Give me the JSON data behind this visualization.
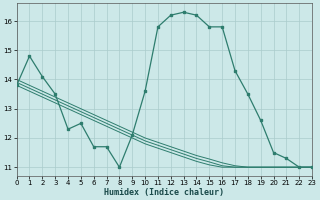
{
  "title": "",
  "xlabel": "Humidex (Indice chaleur)",
  "ylabel": "",
  "background_color": "#cce8e8",
  "line_color": "#2e7d6e",
  "grid_color": "#aacccc",
  "x_data": [
    0,
    1,
    2,
    3,
    4,
    5,
    6,
    7,
    8,
    9,
    10,
    11,
    12,
    13,
    14,
    15,
    16,
    17,
    18,
    19,
    20,
    21,
    22,
    23
  ],
  "y_main": [
    13.8,
    14.8,
    14.1,
    13.5,
    12.3,
    12.5,
    11.7,
    11.7,
    11.0,
    12.1,
    13.6,
    15.8,
    16.2,
    16.3,
    16.2,
    15.8,
    15.8,
    14.3,
    13.5,
    12.6,
    11.5,
    11.3,
    11.0,
    11.0
  ],
  "y_trend1": [
    14.0,
    13.8,
    13.6,
    13.4,
    13.2,
    13.0,
    12.8,
    12.6,
    12.4,
    12.2,
    12.0,
    11.85,
    11.7,
    11.55,
    11.4,
    11.28,
    11.15,
    11.05,
    11.0,
    11.0,
    11.0,
    11.0,
    11.0,
    11.0
  ],
  "y_trend2": [
    13.9,
    13.7,
    13.5,
    13.3,
    13.1,
    12.9,
    12.7,
    12.5,
    12.3,
    12.1,
    11.9,
    11.75,
    11.6,
    11.45,
    11.3,
    11.18,
    11.05,
    11.0,
    11.0,
    11.0,
    11.0,
    11.0,
    11.0,
    11.0
  ],
  "y_trend3": [
    13.8,
    13.6,
    13.4,
    13.2,
    13.0,
    12.8,
    12.6,
    12.4,
    12.2,
    12.0,
    11.8,
    11.65,
    11.5,
    11.35,
    11.2,
    11.08,
    11.0,
    11.0,
    11.0,
    11.0,
    11.0,
    11.0,
    11.0,
    11.0
  ],
  "xlim": [
    0,
    23
  ],
  "ylim": [
    10.7,
    16.6
  ],
  "yticks": [
    11,
    12,
    13,
    14,
    15,
    16
  ],
  "xticks": [
    0,
    1,
    2,
    3,
    4,
    5,
    6,
    7,
    8,
    9,
    10,
    11,
    12,
    13,
    14,
    15,
    16,
    17,
    18,
    19,
    20,
    21,
    22,
    23
  ]
}
